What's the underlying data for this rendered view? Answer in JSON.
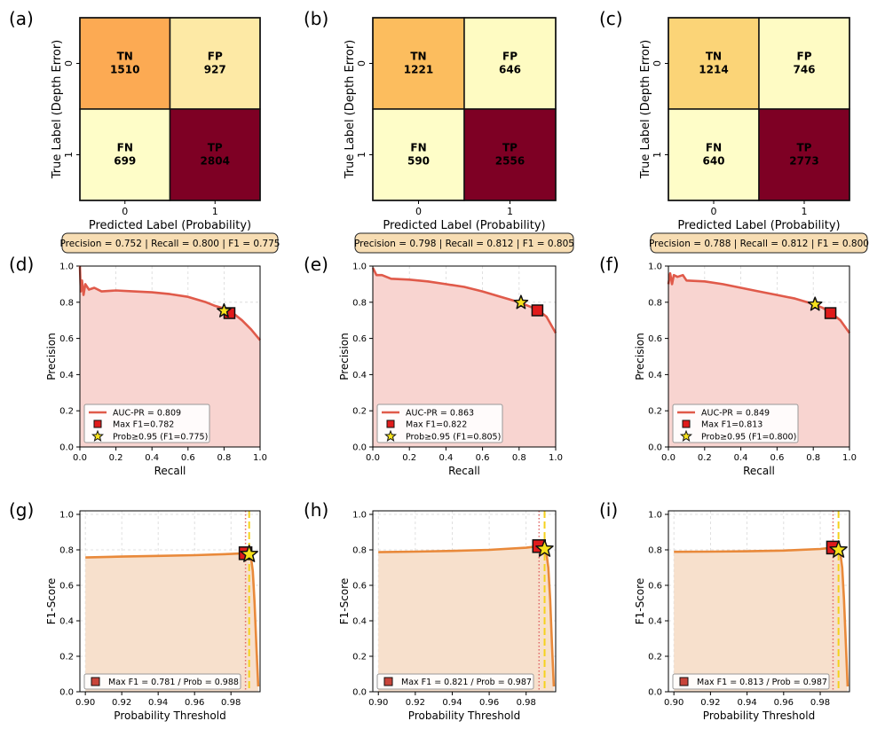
{
  "chart_data": [
    {
      "id": "a",
      "panel_label": "(a)",
      "type": "heatmap",
      "title": "",
      "xlabel": "Predicted Label (Probability)",
      "ylabel": "True Label (Depth Error)",
      "x_ticks": [
        "0",
        "1"
      ],
      "y_ticks": [
        "0",
        "1"
      ],
      "cells": [
        {
          "label": "TN",
          "value": "1510",
          "color": "#fcaa53"
        },
        {
          "label": "FP",
          "value": "927",
          "color": "#fde9a5"
        },
        {
          "label": "FN",
          "value": "699",
          "color": "#fefdc8"
        },
        {
          "label": "TP",
          "value": "2804",
          "color": "#7e0024"
        }
      ],
      "summary": "Precision = 0.752  |  Recall = 0.800  |  F1 = 0.775"
    },
    {
      "id": "b",
      "panel_label": "(b)",
      "type": "heatmap",
      "title": "",
      "xlabel": "Predicted Label (Probability)",
      "ylabel": "True Label (Depth Error)",
      "x_ticks": [
        "0",
        "1"
      ],
      "y_ticks": [
        "0",
        "1"
      ],
      "cells": [
        {
          "label": "TN",
          "value": "1221",
          "color": "#fcbd5e"
        },
        {
          "label": "FP",
          "value": "646",
          "color": "#fefbc2"
        },
        {
          "label": "FN",
          "value": "590",
          "color": "#fefdc8"
        },
        {
          "label": "TP",
          "value": "2556",
          "color": "#7e0024"
        }
      ],
      "summary": "Precision = 0.798  |  Recall = 0.812  |  F1 = 0.805"
    },
    {
      "id": "c",
      "panel_label": "(c)",
      "type": "heatmap",
      "title": "",
      "xlabel": "Predicted Label (Probability)",
      "ylabel": "True Label (Depth Error)",
      "x_ticks": [
        "0",
        "1"
      ],
      "y_ticks": [
        "0",
        "1"
      ],
      "cells": [
        {
          "label": "TN",
          "value": "1214",
          "color": "#fbd477"
        },
        {
          "label": "FP",
          "value": "746",
          "color": "#fefbc4"
        },
        {
          "label": "FN",
          "value": "640",
          "color": "#fefdc8"
        },
        {
          "label": "TP",
          "value": "2773",
          "color": "#7e0024"
        }
      ],
      "summary": "Precision = 0.788  |  Recall = 0.812  |  F1 = 0.800"
    },
    {
      "id": "d",
      "panel_label": "(d)",
      "type": "line",
      "xlabel": "Recall",
      "ylabel": "Precision",
      "xlim": [
        0,
        1
      ],
      "ylim": [
        0,
        1
      ],
      "x_ticks": [
        "0.0",
        "0.2",
        "0.4",
        "0.6",
        "0.8",
        "1.0"
      ],
      "y_ticks": [
        "0.0",
        "0.2",
        "0.4",
        "0.6",
        "0.8",
        "1.0"
      ],
      "curve": {
        "x": [
          0,
          0.005,
          0.012,
          0.02,
          0.03,
          0.05,
          0.08,
          0.12,
          0.2,
          0.3,
          0.4,
          0.5,
          0.6,
          0.7,
          0.75,
          0.8,
          0.85,
          0.9,
          0.95,
          1.0
        ],
        "y": [
          1.0,
          0.86,
          0.92,
          0.84,
          0.9,
          0.87,
          0.88,
          0.86,
          0.865,
          0.86,
          0.855,
          0.845,
          0.83,
          0.8,
          0.78,
          0.765,
          0.74,
          0.7,
          0.65,
          0.59
        ]
      },
      "max_f1_point": {
        "x": 0.83,
        "y": 0.74
      },
      "prob_point": {
        "x": 0.8,
        "y": 0.752
      },
      "legend": {
        "position": "lower-left",
        "entries": [
          "AUC-PR = 0.809",
          "Max F1=0.782",
          "Prob≥0.95 (F1=0.775)"
        ]
      }
    },
    {
      "id": "e",
      "panel_label": "(e)",
      "type": "line",
      "xlabel": "Recall",
      "ylabel": "Precision",
      "xlim": [
        0,
        1
      ],
      "ylim": [
        0,
        1
      ],
      "x_ticks": [
        "0.0",
        "0.2",
        "0.4",
        "0.6",
        "0.8",
        "1.0"
      ],
      "y_ticks": [
        "0.0",
        "0.2",
        "0.4",
        "0.6",
        "0.8",
        "1.0"
      ],
      "curve": {
        "x": [
          0,
          0.01,
          0.02,
          0.05,
          0.1,
          0.2,
          0.3,
          0.4,
          0.5,
          0.6,
          0.7,
          0.8,
          0.85,
          0.9,
          0.95,
          1.0
        ],
        "y": [
          0.99,
          0.97,
          0.95,
          0.95,
          0.93,
          0.925,
          0.915,
          0.9,
          0.885,
          0.86,
          0.83,
          0.8,
          0.78,
          0.76,
          0.72,
          0.63
        ]
      },
      "max_f1_point": {
        "x": 0.9,
        "y": 0.755
      },
      "prob_point": {
        "x": 0.81,
        "y": 0.798
      },
      "legend": {
        "position": "lower-left",
        "entries": [
          "AUC-PR = 0.863",
          "Max F1=0.822",
          "Prob≥0.95 (F1=0.805)"
        ]
      }
    },
    {
      "id": "f",
      "panel_label": "(f)",
      "type": "line",
      "xlabel": "Recall",
      "ylabel": "Precision",
      "xlim": [
        0,
        1
      ],
      "ylim": [
        0,
        1
      ],
      "x_ticks": [
        "0.0",
        "0.2",
        "0.4",
        "0.6",
        "0.8",
        "1.0"
      ],
      "y_ticks": [
        "0.0",
        "0.2",
        "0.4",
        "0.6",
        "0.8",
        "1.0"
      ],
      "curve": {
        "x": [
          0,
          0.01,
          0.02,
          0.03,
          0.05,
          0.08,
          0.1,
          0.2,
          0.3,
          0.4,
          0.5,
          0.6,
          0.7,
          0.8,
          0.85,
          0.9,
          0.95,
          1.0
        ],
        "y": [
          0.9,
          0.96,
          0.9,
          0.95,
          0.94,
          0.95,
          0.92,
          0.915,
          0.9,
          0.88,
          0.86,
          0.84,
          0.82,
          0.79,
          0.77,
          0.74,
          0.7,
          0.63
        ]
      },
      "max_f1_point": {
        "x": 0.895,
        "y": 0.74
      },
      "prob_point": {
        "x": 0.81,
        "y": 0.788
      },
      "legend": {
        "position": "lower-left",
        "entries": [
          "AUC-PR = 0.849",
          "Max F1=0.813",
          "Prob≥0.95 (F1=0.800)"
        ]
      }
    },
    {
      "id": "g",
      "panel_label": "(g)",
      "type": "area",
      "xlabel": "Probability Threshold",
      "ylabel": "F1-Score",
      "xlim": [
        0.897,
        0.996
      ],
      "ylim": [
        0,
        1.02
      ],
      "x_ticks": [
        "0.90",
        "0.92",
        "0.94",
        "0.96",
        "0.98"
      ],
      "y_ticks": [
        "0.0",
        "0.2",
        "0.4",
        "0.6",
        "0.8",
        "1.0"
      ],
      "curve": {
        "x": [
          0.9,
          0.92,
          0.94,
          0.96,
          0.98,
          0.988,
          0.99,
          0.991,
          0.992,
          0.993,
          0.994,
          0.995
        ],
        "y": [
          0.757,
          0.762,
          0.766,
          0.77,
          0.777,
          0.781,
          0.775,
          0.76,
          0.68,
          0.5,
          0.25,
          0.03
        ]
      },
      "max_f1_line": 0.988,
      "prob_line": 0.99,
      "max_f1_point": {
        "x": 0.988,
        "y": 0.781
      },
      "prob_point": {
        "x": 0.99,
        "y": 0.775
      },
      "legend": {
        "position": "lower-left",
        "entries": [
          "Max F1 = 0.781 / Prob = 0.988"
        ]
      }
    },
    {
      "id": "h",
      "panel_label": "(h)",
      "type": "area",
      "xlabel": "Probability Threshold",
      "ylabel": "F1-Score",
      "xlim": [
        0.897,
        0.996
      ],
      "ylim": [
        0,
        1.02
      ],
      "x_ticks": [
        "0.90",
        "0.92",
        "0.94",
        "0.96",
        "0.98"
      ],
      "y_ticks": [
        "0.0",
        "0.2",
        "0.4",
        "0.6",
        "0.8",
        "1.0"
      ],
      "curve": {
        "x": [
          0.9,
          0.92,
          0.94,
          0.96,
          0.98,
          0.987,
          0.99,
          0.991,
          0.992,
          0.993,
          0.994,
          0.995
        ],
        "y": [
          0.787,
          0.79,
          0.794,
          0.8,
          0.812,
          0.821,
          0.805,
          0.78,
          0.7,
          0.52,
          0.27,
          0.03
        ]
      },
      "max_f1_line": 0.987,
      "prob_line": 0.99,
      "max_f1_point": {
        "x": 0.987,
        "y": 0.821
      },
      "prob_point": {
        "x": 0.99,
        "y": 0.805
      },
      "legend": {
        "position": "lower-left",
        "entries": [
          "Max F1 = 0.821 / Prob = 0.987"
        ]
      }
    },
    {
      "id": "i",
      "panel_label": "(i)",
      "type": "area",
      "xlabel": "Probability Threshold",
      "ylabel": "F1-Score",
      "xlim": [
        0.897,
        0.996
      ],
      "ylim": [
        0,
        1.02
      ],
      "x_ticks": [
        "0.90",
        "0.92",
        "0.94",
        "0.96",
        "0.98"
      ],
      "y_ticks": [
        "0.0",
        "0.2",
        "0.4",
        "0.6",
        "0.8",
        "1.0"
      ],
      "curve": {
        "x": [
          0.9,
          0.92,
          0.94,
          0.96,
          0.98,
          0.987,
          0.99,
          0.991,
          0.992,
          0.993,
          0.994,
          0.995
        ],
        "y": [
          0.789,
          0.79,
          0.792,
          0.796,
          0.805,
          0.813,
          0.8,
          0.78,
          0.7,
          0.52,
          0.27,
          0.03
        ]
      },
      "max_f1_line": 0.987,
      "prob_line": 0.99,
      "max_f1_point": {
        "x": 0.987,
        "y": 0.813
      },
      "prob_point": {
        "x": 0.99,
        "y": 0.8
      },
      "legend": {
        "position": "lower-left",
        "entries": [
          "Max F1 = 0.813 / Prob = 0.987"
        ]
      }
    }
  ],
  "colors": {
    "pr_line": "#e05a4a",
    "pr_fill": "#f8d4d0",
    "f1_line": "#e9893a",
    "f1_fill": "#f7e0cc",
    "max_marker": "#e01b1b",
    "star_marker": "#f7e21c",
    "maxf1_vline": "#e06a6a",
    "prob_vline": "#f5d21c",
    "summary_box": "#f7ddb3",
    "grid": "#d8d8d8"
  }
}
